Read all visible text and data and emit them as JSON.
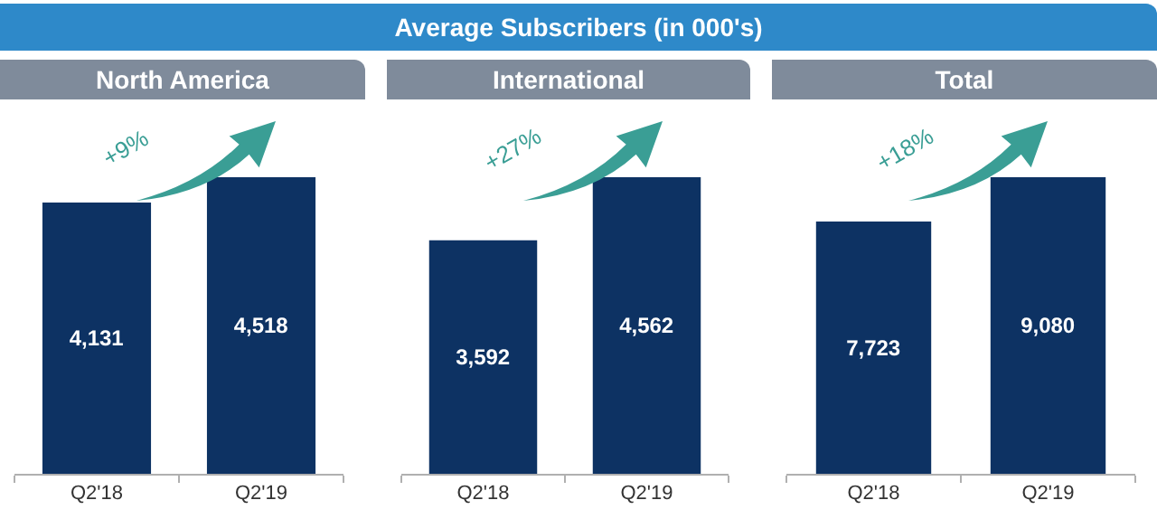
{
  "chart_data": [
    {
      "type": "other",
      "title": "Average Subscribers (in 000's)"
    },
    {
      "type": "bar",
      "title": "North America",
      "categories": [
        "Q2'18",
        "Q2'19"
      ],
      "values": [
        4131,
        4518
      ],
      "color": "#0d3263",
      "value_labels": [
        "4,131",
        "4,518"
      ],
      "annotations": [
        "+9%"
      ]
    },
    {
      "type": "bar",
      "title": "International",
      "categories": [
        "Q2'18",
        "Q2'19"
      ],
      "values": [
        3592,
        4562
      ],
      "color": "#0d3263",
      "value_labels": [
        "3,592",
        "4,562"
      ],
      "annotations": [
        "+27%"
      ]
    },
    {
      "type": "bar",
      "title": "Total",
      "categories": [
        "Q2'18",
        "Q2'19"
      ],
      "values": [
        7723,
        9080
      ],
      "color": "#0d3263",
      "value_labels": [
        "7,723",
        "9,080"
      ],
      "annotations": [
        "+18%"
      ]
    }
  ]
}
